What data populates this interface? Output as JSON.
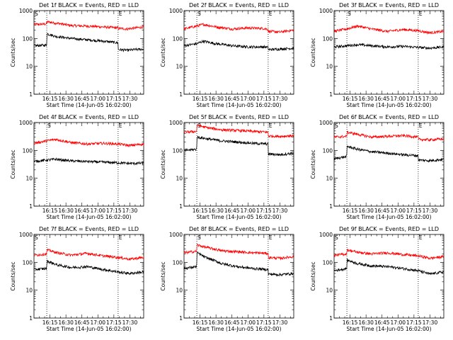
{
  "chart_data": {
    "type": "line",
    "layout": "3x3 grid",
    "x_tick_labels": [
      "16:15",
      "16:30",
      "16:45",
      "17:00",
      "17:15",
      "17:30"
    ],
    "x_tick_minutes_after_1600": [
      15,
      30,
      45,
      60,
      75,
      90
    ],
    "x_range_minutes_after_1600": [
      0,
      103
    ],
    "y_scale": "log",
    "ylim": [
      1,
      1000
    ],
    "y_tick_labels": [
      "1",
      "10",
      "100",
      "1000"
    ],
    "y_tick_values": [
      1,
      10,
      100,
      1000
    ],
    "ylabel": "Counts/sec",
    "xlabel": "Start Time (14-Jun-05 16:02:00)",
    "series_colors": {
      "events": "#000000",
      "lld": "#ff0000"
    },
    "series_names": [
      "Events (BLACK)",
      "LLD (RED)"
    ],
    "markers": [
      "S",
      "E"
    ],
    "panels": [
      {
        "title": "Det 1f BLACK = Events, RED = LLD",
        "start_min": 0,
        "jump_min": 12,
        "end_min": 79,
        "events": {
          "x": [
            0,
            11.9,
            12,
            20,
            35,
            50,
            65,
            79,
            79.1,
            88,
            103
          ],
          "y": [
            55,
            58,
            150,
            120,
            100,
            90,
            80,
            70,
            40,
            38,
            42
          ]
        },
        "lld": {
          "x": [
            0,
            11.9,
            12,
            20,
            35,
            50,
            65,
            79,
            79.1,
            88,
            103
          ],
          "y": [
            320,
            330,
            400,
            360,
            290,
            280,
            260,
            240,
            230,
            220,
            260
          ]
        }
      },
      {
        "title": "Det 2f BLACK = Events, RED = LLD",
        "start_min": 12,
        "jump_min": 12,
        "end_min": 79,
        "events": {
          "x": [
            0,
            12,
            18,
            30,
            45,
            60,
            75,
            79,
            79.1,
            90,
            103
          ],
          "y": [
            55,
            65,
            80,
            65,
            55,
            50,
            50,
            48,
            40,
            42,
            45
          ]
        },
        "lld": {
          "x": [
            0,
            12,
            18,
            30,
            45,
            60,
            75,
            79,
            79.1,
            90,
            103
          ],
          "y": [
            220,
            280,
            320,
            260,
            220,
            240,
            230,
            210,
            180,
            170,
            200
          ]
        }
      },
      {
        "title": "Det 3f BLACK = Events, RED = LLD",
        "start_min": 12,
        "jump_min": 12,
        "end_min": 79,
        "events": {
          "x": [
            0,
            12,
            22,
            35,
            50,
            65,
            79,
            90,
            103
          ],
          "y": [
            50,
            55,
            60,
            55,
            50,
            52,
            48,
            45,
            50
          ]
        },
        "lld": {
          "x": [
            0,
            12,
            22,
            35,
            50,
            65,
            79,
            90,
            103
          ],
          "y": [
            180,
            220,
            280,
            220,
            180,
            210,
            190,
            160,
            180
          ]
        }
      },
      {
        "title": "Det 4f BLACK = Events, RED = LLD",
        "start_min": 12,
        "jump_min": 12,
        "end_min": 79,
        "events": {
          "x": [
            0,
            12,
            20,
            35,
            50,
            65,
            79,
            90,
            103
          ],
          "y": [
            40,
            45,
            48,
            42,
            40,
            38,
            36,
            34,
            35
          ]
        },
        "lld": {
          "x": [
            0,
            12,
            20,
            35,
            50,
            65,
            79,
            90,
            103
          ],
          "y": [
            180,
            220,
            250,
            190,
            170,
            180,
            170,
            150,
            170
          ]
        }
      },
      {
        "title": "Det 5f BLACK = Events, RED = LLD",
        "start_min": 12,
        "jump_min": 12,
        "end_min": 79,
        "events": {
          "x": [
            0,
            11.9,
            12,
            22,
            35,
            50,
            65,
            79,
            79.1,
            90,
            103
          ],
          "y": [
            100,
            110,
            300,
            260,
            220,
            200,
            180,
            170,
            75,
            70,
            80
          ]
        },
        "lld": {
          "x": [
            0,
            11.9,
            12,
            22,
            35,
            50,
            65,
            79,
            79.1,
            90,
            103
          ],
          "y": [
            450,
            480,
            800,
            650,
            550,
            520,
            480,
            450,
            330,
            320,
            340
          ]
        }
      },
      {
        "title": "Det 6f BLACK = Events, RED = LLD",
        "start_min": 0,
        "jump_min": 12,
        "end_min": 79,
        "events": {
          "x": [
            0,
            11.9,
            12,
            22,
            35,
            50,
            65,
            79,
            79.1,
            90,
            103
          ],
          "y": [
            50,
            60,
            140,
            110,
            90,
            80,
            70,
            65,
            45,
            43,
            48
          ]
        },
        "lld": {
          "x": [
            0,
            11.9,
            12,
            22,
            35,
            50,
            65,
            79,
            79.1,
            90,
            103
          ],
          "y": [
            300,
            320,
            450,
            380,
            300,
            320,
            340,
            300,
            250,
            240,
            260
          ]
        }
      },
      {
        "title": "Det 7f BLACK = Events, RED = LLD",
        "start_min": 0,
        "jump_min": 12,
        "end_min": 79,
        "events": {
          "x": [
            0,
            11.9,
            12,
            22,
            35,
            50,
            65,
            79,
            90,
            103
          ],
          "y": [
            55,
            60,
            110,
            80,
            65,
            70,
            55,
            45,
            40,
            45
          ]
        },
        "lld": {
          "x": [
            0,
            11.9,
            12,
            22,
            35,
            50,
            65,
            79,
            90,
            103
          ],
          "y": [
            180,
            200,
            280,
            220,
            180,
            210,
            170,
            150,
            130,
            150
          ]
        }
      },
      {
        "title": "Det 8f BLACK = Events, RED = LLD",
        "start_min": 12,
        "jump_min": 12,
        "end_min": 79,
        "events": {
          "x": [
            0,
            11.9,
            12,
            20,
            35,
            50,
            65,
            79,
            79.1,
            90,
            103
          ],
          "y": [
            60,
            70,
            220,
            150,
            90,
            70,
            60,
            55,
            38,
            36,
            40
          ]
        },
        "lld": {
          "x": [
            0,
            11.9,
            12,
            20,
            35,
            50,
            65,
            79,
            79.1,
            90,
            103
          ],
          "y": [
            220,
            250,
            420,
            350,
            260,
            240,
            220,
            210,
            150,
            140,
            160
          ]
        }
      },
      {
        "title": "Det 9f BLACK = Events, RED = LLD",
        "start_min": 0,
        "jump_min": 12,
        "end_min": 79,
        "events": {
          "x": [
            0,
            11.9,
            12,
            22,
            35,
            50,
            65,
            79,
            90,
            103
          ],
          "y": [
            50,
            60,
            120,
            90,
            75,
            70,
            60,
            50,
            38,
            45
          ]
        },
        "lld": {
          "x": [
            0,
            11.9,
            12,
            22,
            35,
            50,
            65,
            79,
            90,
            103
          ],
          "y": [
            180,
            200,
            280,
            230,
            200,
            220,
            190,
            170,
            140,
            160
          ]
        }
      }
    ]
  }
}
